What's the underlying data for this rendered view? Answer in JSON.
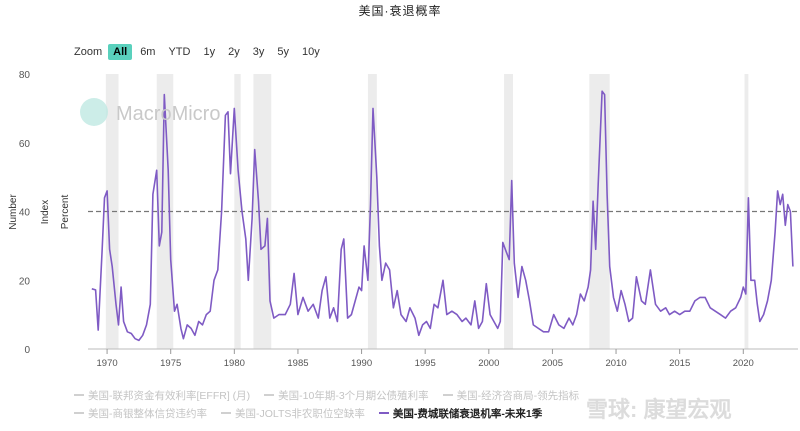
{
  "header": {
    "title": "美国·衰退概率"
  },
  "zoom": {
    "label": "Zoom",
    "buttons": [
      "All",
      "6m",
      "YTD",
      "1y",
      "2y",
      "3y",
      "5y",
      "10y"
    ],
    "active": "All"
  },
  "watermark": {
    "text": "MacroMicro",
    "bottom_text": "雪球: 康望宏观"
  },
  "legend": [
    {
      "label": "美国-联邦资金有效利率[EFFR] (月)",
      "active": false
    },
    {
      "label": "美国-10年期-3个月期公债殖利率",
      "active": false
    },
    {
      "label": "美国-经济咨商局-领先指标",
      "active": false
    },
    {
      "label": "美国-商银整体信贷违约率",
      "active": false
    },
    {
      "label": "美国-JOLTS非农职位空缺率",
      "active": false
    },
    {
      "label": "美国-费城联储衰退机率-未来1季",
      "active": true
    }
  ],
  "colors": {
    "series": "#7f5bc4",
    "recession": "#ececec",
    "threshold": "#777777"
  },
  "chart_data": {
    "type": "line",
    "y_axis_labels": [
      "Number",
      "Index",
      "Percent"
    ],
    "xlim": [
      1968.5,
      2024.3
    ],
    "ylim": [
      0,
      80
    ],
    "x_ticks": [
      1970,
      1975,
      1980,
      1985,
      1990,
      1995,
      2000,
      2005,
      2010,
      2015,
      2020
    ],
    "y_ticks": [
      0,
      20,
      40,
      60,
      80
    ],
    "threshold": 40,
    "recessions": [
      [
        1969.9,
        1970.9
      ],
      [
        1973.9,
        1975.2
      ],
      [
        1980.0,
        1980.5
      ],
      [
        1981.5,
        1982.9
      ],
      [
        1990.5,
        1991.2
      ],
      [
        2001.2,
        2001.9
      ],
      [
        2007.9,
        2009.5
      ],
      [
        2020.1,
        2020.4
      ]
    ],
    "series": [
      {
        "name": "美国-费城联储衰退机率-未来1季",
        "points": [
          [
            1968.8,
            17.5
          ],
          [
            1969.1,
            17.2
          ],
          [
            1969.3,
            5.5
          ],
          [
            1969.6,
            28
          ],
          [
            1969.8,
            44
          ],
          [
            1970.0,
            46
          ],
          [
            1970.2,
            29
          ],
          [
            1970.4,
            24
          ],
          [
            1970.7,
            13
          ],
          [
            1970.9,
            7
          ],
          [
            1971.1,
            18
          ],
          [
            1971.3,
            8
          ],
          [
            1971.6,
            5
          ],
          [
            1971.9,
            4.5
          ],
          [
            1972.2,
            3
          ],
          [
            1972.5,
            2.5
          ],
          [
            1972.8,
            4
          ],
          [
            1973.1,
            7
          ],
          [
            1973.4,
            13
          ],
          [
            1973.6,
            45
          ],
          [
            1973.9,
            52
          ],
          [
            1974.1,
            30
          ],
          [
            1974.3,
            34
          ],
          [
            1974.5,
            74
          ],
          [
            1974.8,
            52
          ],
          [
            1975.0,
            26
          ],
          [
            1975.3,
            11
          ],
          [
            1975.5,
            13
          ],
          [
            1975.8,
            6
          ],
          [
            1976.0,
            3
          ],
          [
            1976.3,
            7
          ],
          [
            1976.6,
            6
          ],
          [
            1976.9,
            4
          ],
          [
            1977.2,
            8
          ],
          [
            1977.5,
            7
          ],
          [
            1977.8,
            10
          ],
          [
            1978.1,
            11
          ],
          [
            1978.4,
            20
          ],
          [
            1978.7,
            23
          ],
          [
            1979.0,
            40
          ],
          [
            1979.3,
            68
          ],
          [
            1979.5,
            69
          ],
          [
            1979.7,
            51
          ],
          [
            1980.0,
            70
          ],
          [
            1980.3,
            52
          ],
          [
            1980.6,
            40
          ],
          [
            1980.9,
            32
          ],
          [
            1981.1,
            20
          ],
          [
            1981.4,
            38
          ],
          [
            1981.6,
            58
          ],
          [
            1981.9,
            43
          ],
          [
            1982.1,
            29
          ],
          [
            1982.4,
            30
          ],
          [
            1982.6,
            38
          ],
          [
            1982.8,
            14
          ],
          [
            1983.1,
            9
          ],
          [
            1983.5,
            10
          ],
          [
            1984.0,
            10
          ],
          [
            1984.4,
            13
          ],
          [
            1984.7,
            22
          ],
          [
            1985.0,
            10
          ],
          [
            1985.4,
            15
          ],
          [
            1985.8,
            11
          ],
          [
            1986.2,
            13
          ],
          [
            1986.6,
            9
          ],
          [
            1986.9,
            17
          ],
          [
            1987.2,
            21
          ],
          [
            1987.5,
            9
          ],
          [
            1987.8,
            12
          ],
          [
            1988.1,
            8
          ],
          [
            1988.4,
            29
          ],
          [
            1988.6,
            32
          ],
          [
            1988.9,
            9
          ],
          [
            1989.2,
            10
          ],
          [
            1989.5,
            14
          ],
          [
            1989.8,
            18
          ],
          [
            1990.0,
            17
          ],
          [
            1990.2,
            30
          ],
          [
            1990.5,
            20
          ],
          [
            1990.7,
            42
          ],
          [
            1990.9,
            70
          ],
          [
            1991.2,
            50
          ],
          [
            1991.4,
            30
          ],
          [
            1991.6,
            20
          ],
          [
            1991.9,
            25
          ],
          [
            1992.2,
            23
          ],
          [
            1992.5,
            12
          ],
          [
            1992.8,
            17
          ],
          [
            1993.1,
            10
          ],
          [
            1993.5,
            8
          ],
          [
            1993.8,
            12
          ],
          [
            1994.2,
            9
          ],
          [
            1994.5,
            4
          ],
          [
            1994.8,
            7
          ],
          [
            1995.1,
            8
          ],
          [
            1995.4,
            6
          ],
          [
            1995.7,
            13
          ],
          [
            1996.0,
            12
          ],
          [
            1996.4,
            20
          ],
          [
            1996.7,
            10
          ],
          [
            1997.1,
            11
          ],
          [
            1997.5,
            10
          ],
          [
            1997.9,
            8
          ],
          [
            1998.2,
            9
          ],
          [
            1998.6,
            7
          ],
          [
            1998.9,
            14
          ],
          [
            1999.2,
            6
          ],
          [
            1999.5,
            8
          ],
          [
            1999.8,
            19
          ],
          [
            2000.1,
            10
          ],
          [
            2000.4,
            8
          ],
          [
            2000.7,
            6
          ],
          [
            2000.9,
            8
          ],
          [
            2001.1,
            31
          ],
          [
            2001.3,
            29
          ],
          [
            2001.6,
            26
          ],
          [
            2001.8,
            49
          ],
          [
            2002.0,
            25
          ],
          [
            2002.3,
            15
          ],
          [
            2002.6,
            24
          ],
          [
            2002.9,
            20
          ],
          [
            2003.2,
            14
          ],
          [
            2003.5,
            7
          ],
          [
            2003.9,
            6
          ],
          [
            2004.3,
            5
          ],
          [
            2004.7,
            5
          ],
          [
            2005.1,
            10
          ],
          [
            2005.5,
            7
          ],
          [
            2005.9,
            6
          ],
          [
            2006.3,
            9
          ],
          [
            2006.6,
            7
          ],
          [
            2006.9,
            10
          ],
          [
            2007.2,
            16
          ],
          [
            2007.5,
            14
          ],
          [
            2007.8,
            18
          ],
          [
            2008.0,
            23
          ],
          [
            2008.2,
            43
          ],
          [
            2008.4,
            29
          ],
          [
            2008.6,
            48
          ],
          [
            2008.9,
            75
          ],
          [
            2009.1,
            74
          ],
          [
            2009.3,
            45
          ],
          [
            2009.5,
            24
          ],
          [
            2009.8,
            15
          ],
          [
            2010.1,
            11
          ],
          [
            2010.4,
            17
          ],
          [
            2010.7,
            13
          ],
          [
            2011.0,
            8
          ],
          [
            2011.3,
            9
          ],
          [
            2011.6,
            21
          ],
          [
            2012.0,
            14
          ],
          [
            2012.3,
            13
          ],
          [
            2012.7,
            23
          ],
          [
            2013.1,
            13
          ],
          [
            2013.5,
            11
          ],
          [
            2013.9,
            12
          ],
          [
            2014.2,
            10
          ],
          [
            2014.6,
            11
          ],
          [
            2015.0,
            10
          ],
          [
            2015.4,
            11
          ],
          [
            2015.8,
            11
          ],
          [
            2016.2,
            14
          ],
          [
            2016.6,
            15
          ],
          [
            2017.0,
            15
          ],
          [
            2017.4,
            12
          ],
          [
            2017.8,
            11
          ],
          [
            2018.2,
            10
          ],
          [
            2018.6,
            9
          ],
          [
            2019.0,
            11
          ],
          [
            2019.4,
            12
          ],
          [
            2019.8,
            15
          ],
          [
            2020.0,
            18
          ],
          [
            2020.2,
            16
          ],
          [
            2020.4,
            44
          ],
          [
            2020.6,
            20
          ],
          [
            2020.9,
            20
          ],
          [
            2021.1,
            13
          ],
          [
            2021.3,
            8
          ],
          [
            2021.6,
            10
          ],
          [
            2021.9,
            14
          ],
          [
            2022.2,
            20
          ],
          [
            2022.5,
            34
          ],
          [
            2022.7,
            46
          ],
          [
            2022.9,
            42
          ],
          [
            2023.1,
            45
          ],
          [
            2023.3,
            36
          ],
          [
            2023.5,
            42
          ],
          [
            2023.7,
            40
          ],
          [
            2023.9,
            24
          ]
        ]
      }
    ]
  }
}
